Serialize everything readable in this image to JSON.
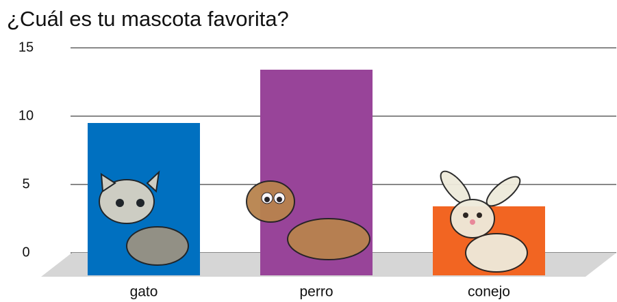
{
  "chart_data": {
    "type": "bar",
    "title": "¿Cuál es tu mascota favorita?",
    "categories": [
      "gato",
      "perro",
      "conejo"
    ],
    "values": [
      9.5,
      13.4,
      3.4
    ],
    "colors": [
      "#0070c0",
      "#984499",
      "#f26522"
    ],
    "ylim": [
      0,
      15
    ],
    "yticks": [
      0,
      5,
      10,
      15
    ],
    "grid": true
  }
}
